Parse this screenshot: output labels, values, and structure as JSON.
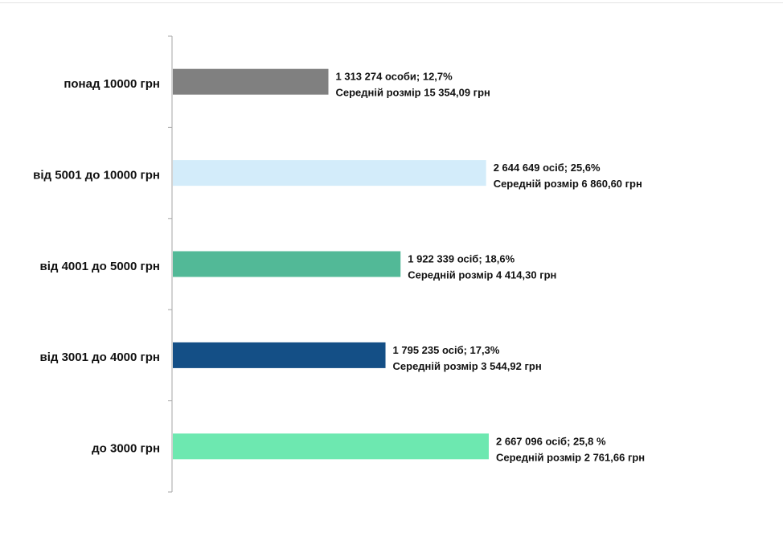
{
  "chart_data": {
    "type": "bar",
    "orientation": "horizontal",
    "categories": [
      "понад 10000 грн",
      "від 5001 до 10000 грн",
      "від 4001 до 5000 грн",
      "від 3001 до 4000 грн",
      "до 3000 грн"
    ],
    "values": [
      1313274,
      2644649,
      1922339,
      1795235,
      2667096
    ],
    "shares_percent": [
      12.7,
      25.6,
      18.6,
      17.3,
      25.8
    ],
    "average_sizes": [
      15354.09,
      6860.6,
      4414.3,
      3544.92,
      2761.66
    ],
    "colors": [
      "#808080",
      "#d3ecfa",
      "#52b997",
      "#144f86",
      "#6de8b0"
    ],
    "label_line1": [
      "1 313 274 особи;  12,7%",
      "2 644 649 осіб; 25,6%",
      "1 922 339 осіб; 18,6%",
      "1 795 235 осіб; 17,3%",
      "2 667 096 осіб; 25,8 %"
    ],
    "label_line2": [
      "Середній розмір 15 354,09 грн",
      "Середній розмір 6 860,60 грн",
      "Середній розмір 4 414,30 грн",
      "Середній розмір 3 544,92 грн",
      "Середній розмір 2 761,66 грн"
    ],
    "xlim": [
      0,
      2700000
    ],
    "grid": false,
    "legend": "none",
    "title": "",
    "xlabel": "",
    "ylabel": ""
  }
}
